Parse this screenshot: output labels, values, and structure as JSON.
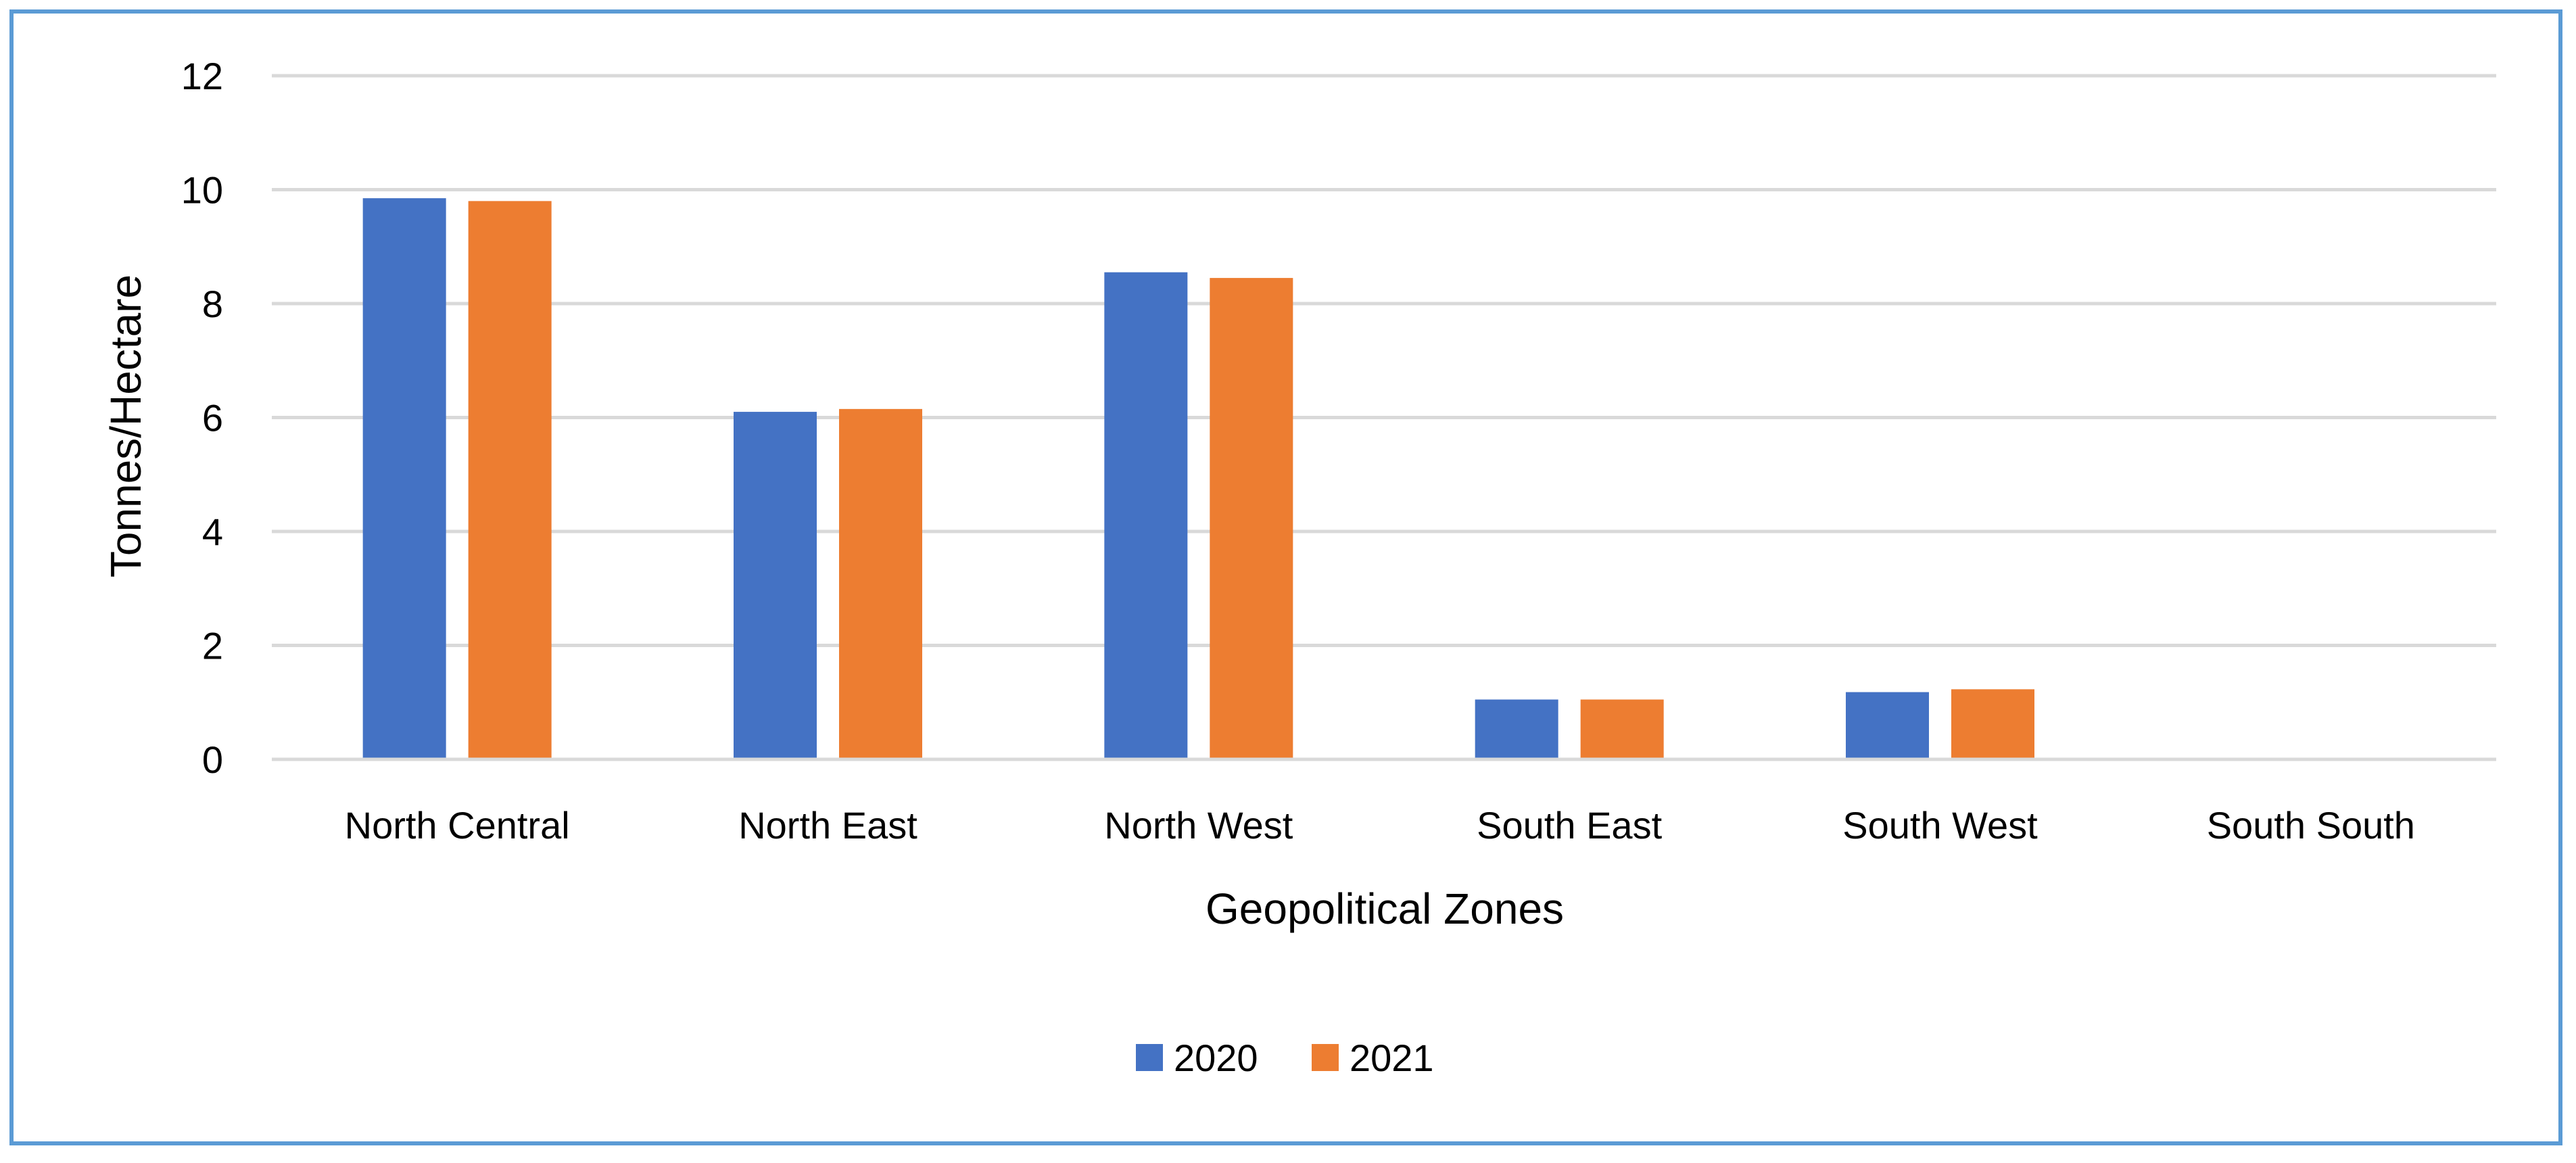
{
  "chart_data": {
    "type": "bar",
    "title": "",
    "xlabel": "Geopolitical Zones",
    "ylabel": "Tonnes/Hectare",
    "ylim": [
      0,
      12
    ],
    "yticks": [
      0,
      2,
      4,
      6,
      8,
      10,
      12
    ],
    "grid": true,
    "legend_position": "bottom",
    "categories": [
      "North Central",
      "North East",
      "North West",
      "South East",
      "South West",
      "South South"
    ],
    "series": [
      {
        "name": "2020",
        "color": "#4472c4",
        "values": [
          9.85,
          6.1,
          8.55,
          1.05,
          1.18,
          0
        ]
      },
      {
        "name": "2021",
        "color": "#ed7d31",
        "values": [
          9.8,
          6.15,
          8.45,
          1.05,
          1.23,
          0
        ]
      }
    ]
  }
}
